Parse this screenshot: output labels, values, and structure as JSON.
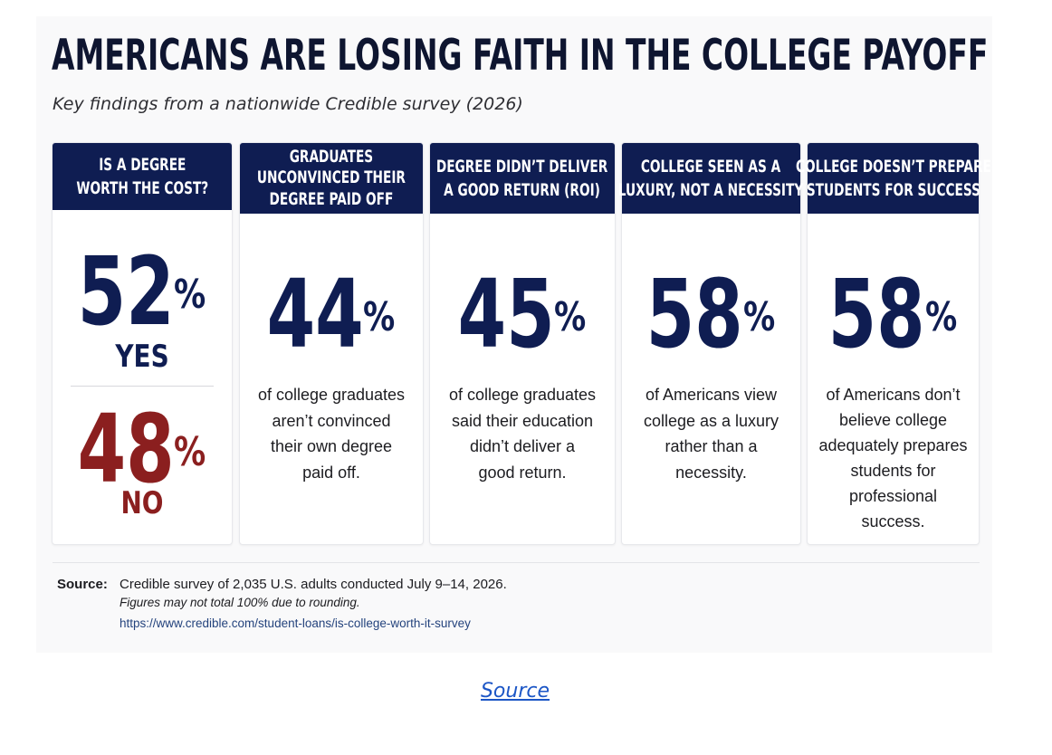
{
  "infographic": {
    "title": "AMERICANS ARE LOSING FAITH IN THE COLLEGE PAYOFF",
    "subtitle": "Key findings from a nationwide Credible survey (2026)"
  },
  "chart_data": {
    "type": "table",
    "title": "AMERICANS ARE LOSING FAITH IN THE COLLEGE PAYOFF",
    "subtitle": "Key findings from a nationwide Credible survey (2026)",
    "unit": "%",
    "cards": [
      {
        "heading": "IS A DEGREE WORTH THE COST?",
        "values": [
          {
            "label": "YES",
            "value": 52,
            "color": "#0f1d52"
          },
          {
            "label": "NO",
            "value": 48,
            "color": "#8b1f1f"
          }
        ]
      },
      {
        "heading": "GRADUATES UNCONVINCED THEIR DEGREE PAID OFF",
        "value": 44,
        "description": "of college graduates aren’t convinced their own degree paid off."
      },
      {
        "heading": "DEGREE DIDN’T DELIVER A GOOD RETURN (ROI)",
        "value": 45,
        "description": "of college graduates said their education didn’t deliver a good return."
      },
      {
        "heading": "COLLEGE SEEN AS A LUXURY, NOT A NECESSITY",
        "value": 58,
        "description": "of Americans view college as a luxury rather than a necessity."
      },
      {
        "heading": "COLLEGE DOESN’T PREPARE STUDENTS FOR SUCCESS",
        "value": 58,
        "description": "of Americans don’t believe college adequately prepares students for professional success."
      }
    ]
  },
  "cards": [
    {
      "head_lines": [
        "IS A DEGREE",
        "WORTH THE COST?"
      ],
      "yes_value": "52",
      "yes_pct": "%",
      "yes_label": "YES",
      "no_value": "48",
      "no_pct": "%",
      "no_label": "NO"
    },
    {
      "head_lines": [
        "GRADUATES",
        "UNCONVINCED THEIR",
        "DEGREE PAID OFF"
      ],
      "value": "44",
      "pct": "%",
      "desc_lines": [
        "of college graduates",
        "aren’t convinced",
        "their own degree",
        "paid off."
      ]
    },
    {
      "head_lines": [
        "DEGREE DIDN’T DELIVER",
        "A GOOD RETURN (ROI)"
      ],
      "value": "45",
      "pct": "%",
      "desc_lines": [
        "of college graduates",
        "said their education",
        "didn’t deliver a",
        "good return."
      ]
    },
    {
      "head_lines": [
        "COLLEGE SEEN AS A",
        "LUXURY, NOT A NECESSITY"
      ],
      "value": "58",
      "pct": "%",
      "desc_lines": [
        "of Americans view",
        "college as a luxury",
        "rather than a",
        "necessity."
      ]
    },
    {
      "head_lines": [
        "COLLEGE DOESN’T PREPARE",
        "STUDENTS FOR SUCCESS"
      ],
      "value": "58",
      "pct": "%",
      "desc_lines": [
        "of Americans don’t",
        "believe college",
        "adequately prepares",
        "students for",
        "professional success."
      ]
    }
  ],
  "source": {
    "label": "Source:",
    "text": "Credible survey of 2,035 U.S. adults conducted July 9–14, 2026.",
    "note": "Figures may not total 100% due to rounding.",
    "url": "https://www.credible.com/student-loans/is-college-worth-it-survey"
  },
  "footer": {
    "source_link": "Source"
  },
  "colors": {
    "navy": "#0f1d52",
    "red": "#8b1f1f",
    "link": "#1c56c6"
  }
}
